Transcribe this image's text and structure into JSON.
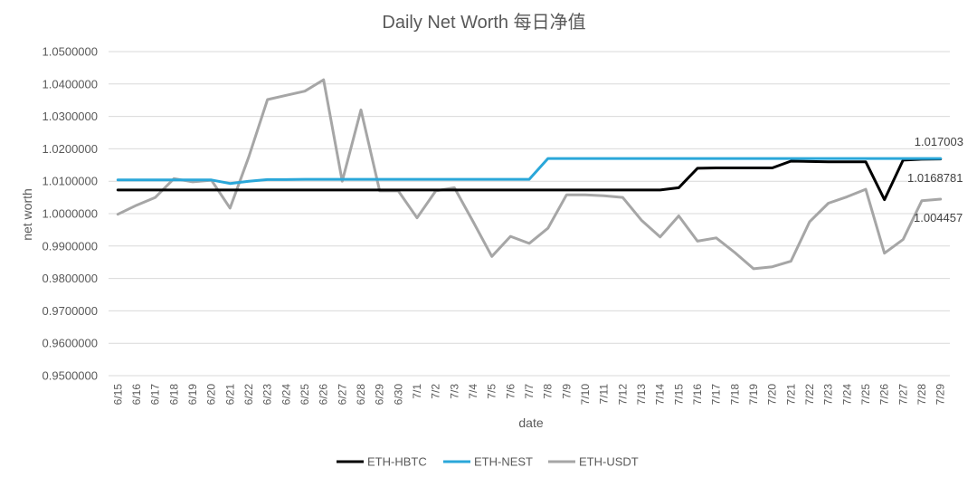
{
  "chart_data": {
    "type": "line",
    "title": "Daily Net Worth 每日净值",
    "xlabel": "date",
    "ylabel": "net worth",
    "ylim": [
      0.95,
      1.05
    ],
    "yticks": [
      "1.0500000",
      "1.0400000",
      "1.0300000",
      "1.0200000",
      "1.0100000",
      "1.0000000",
      "0.9900000",
      "0.9800000",
      "0.9700000",
      "0.9600000",
      "0.9500000"
    ],
    "grid": "horizontal",
    "legend_position": "bottom",
    "categories": [
      "6/15",
      "6/16",
      "6/17",
      "6/18",
      "6/19",
      "6/20",
      "6/21",
      "6/22",
      "6/23",
      "6/24",
      "6/25",
      "6/26",
      "6/27",
      "6/28",
      "6/29",
      "6/30",
      "7/1",
      "7/2",
      "7/3",
      "7/4",
      "7/5",
      "7/6",
      "7/7",
      "7/8",
      "7/9",
      "7/10",
      "7/11",
      "7/12",
      "7/13",
      "7/14",
      "7/15",
      "7/16",
      "7/17",
      "7/18",
      "7/19",
      "7/20",
      "7/21",
      "7/22",
      "7/23",
      "7/24",
      "7/25",
      "7/26",
      "7/27",
      "7/28",
      "7/29"
    ],
    "series": [
      {
        "name": "ETH-HBTC",
        "color": "#000000",
        "values": [
          1.0073,
          1.0073,
          1.0073,
          1.0073,
          1.0073,
          1.0073,
          1.0073,
          1.0073,
          1.0073,
          1.0073,
          1.0073,
          1.0073,
          1.0073,
          1.0073,
          1.0073,
          1.0073,
          1.0073,
          1.0073,
          1.0073,
          1.0073,
          1.0073,
          1.0073,
          1.0073,
          1.0073,
          1.0073,
          1.0073,
          1.0073,
          1.0073,
          1.0073,
          1.0073,
          1.008,
          1.014,
          1.0141,
          1.0141,
          1.0141,
          1.0141,
          1.0162,
          1.0161,
          1.016,
          1.016,
          1.016,
          1.0043,
          1.0165,
          1.0168,
          1.0168781
        ]
      },
      {
        "name": "ETH-NEST",
        "color": "#2aa7d9",
        "values": [
          1.0104,
          1.0104,
          1.0104,
          1.0104,
          1.0104,
          1.0104,
          1.0093,
          1.01,
          1.0105,
          1.0105,
          1.0106,
          1.0106,
          1.0106,
          1.0106,
          1.0106,
          1.0106,
          1.0106,
          1.0106,
          1.0106,
          1.0106,
          1.0106,
          1.0106,
          1.0106,
          1.017,
          1.017,
          1.017,
          1.017,
          1.017,
          1.017,
          1.017,
          1.017,
          1.017,
          1.017,
          1.017,
          1.017,
          1.017,
          1.017,
          1.017,
          1.017,
          1.017,
          1.017,
          1.017,
          1.017,
          1.017,
          1.017003
        ]
      },
      {
        "name": "ETH-USDT",
        "color": "#a6a6a6",
        "values": [
          0.9998,
          1.0026,
          1.005,
          1.0108,
          1.0098,
          1.0103,
          1.0017,
          1.0175,
          1.0352,
          1.0365,
          1.0378,
          1.0413,
          1.01,
          1.032,
          1.007,
          1.007,
          0.9987,
          1.007,
          1.008,
          0.9975,
          0.9868,
          0.993,
          0.9908,
          0.9955,
          1.0058,
          1.0058,
          1.0055,
          1.005,
          0.998,
          0.9928,
          0.9993,
          0.9915,
          0.9925,
          0.988,
          0.983,
          0.9836,
          0.9853,
          0.9975,
          1.0032,
          1.0052,
          1.0075,
          0.9878,
          0.992,
          1.004,
          1.004457
        ]
      }
    ],
    "end_labels": [
      "1.017003",
      "1.0168781",
      "1.004457"
    ]
  }
}
